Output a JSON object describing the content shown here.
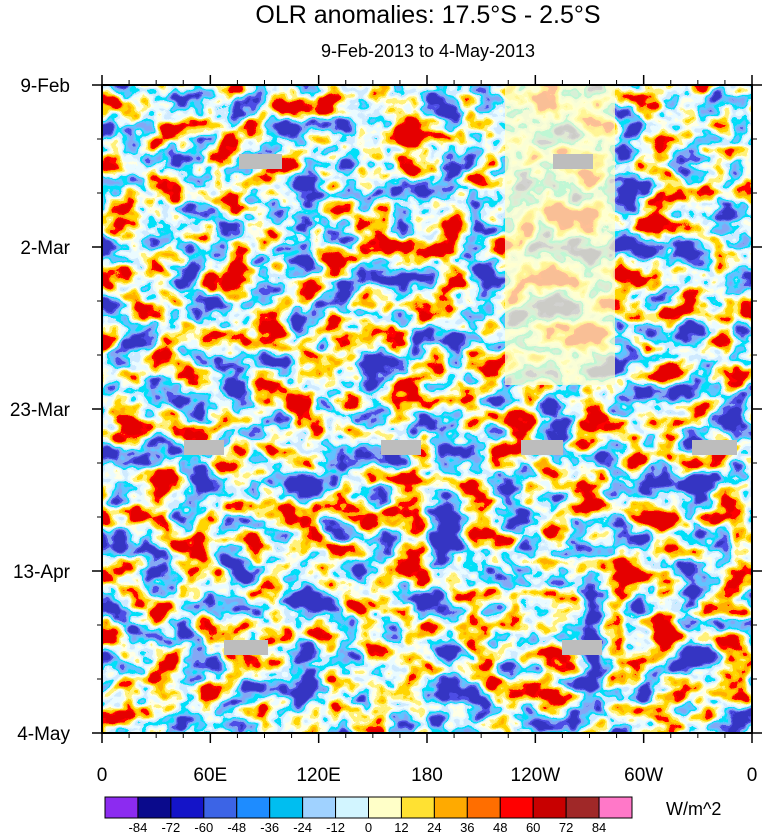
{
  "chart_data": {
    "type": "heatmap",
    "title": "OLR anomalies: 17.5°S - 2.5°S",
    "subtitle": "9-Feb-2013 to 4-May-2013",
    "xlabel": "",
    "ylabel": "",
    "x_ticks": [
      "0",
      "60E",
      "120E",
      "180",
      "120W",
      "60W",
      "0"
    ],
    "y_ticks": [
      "9-Feb",
      "2-Mar",
      "23-Mar",
      "13-Apr",
      "4-May"
    ],
    "colorbar": {
      "levels": [
        "-84",
        "-72",
        "-60",
        "-48",
        "-36",
        "-24",
        "-12",
        "0",
        "12",
        "24",
        "36",
        "48",
        "60",
        "72",
        "84"
      ],
      "colors": [
        "#8c2bf0",
        "#0a0a8c",
        "#1414c8",
        "#3c64e6",
        "#1e8cff",
        "#00bef0",
        "#a0d2ff",
        "#d2f5ff",
        "#ffffc8",
        "#ffe132",
        "#ffaa00",
        "#ff6e00",
        "#ff0000",
        "#c80000",
        "#a02828",
        "#ff78c8"
      ],
      "units": "W/m^2"
    },
    "grid": false
  }
}
